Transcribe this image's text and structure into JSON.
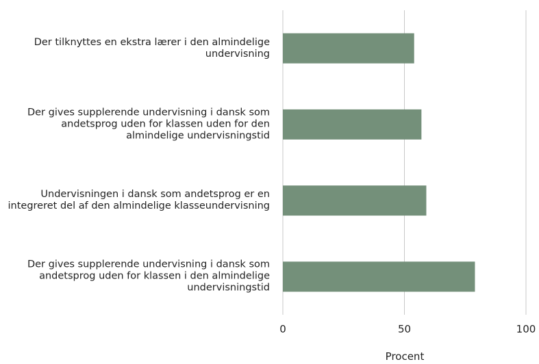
{
  "chart_data": {
    "type": "barh",
    "categories": [
      "Der tilknyttes en ekstra lærer i den almindelige undervisning",
      "Der gives supplerende undervisning i dansk som andetsprog uden for klassen uden for den almindelige undervisningstid",
      "Undervisningen i dansk som andetsprog er en integreret del af den almindelige klasseundervisning",
      "Der gives supplerende undervisning i dansk som andetsprog uden for klassen i den almindelige undervisningstid"
    ],
    "values": [
      54,
      57,
      59,
      79
    ],
    "color": "#74907a",
    "xlim": [
      0,
      100
    ],
    "xticks": [
      0,
      50,
      100
    ],
    "xlabel": "Procent",
    "grid": true
  }
}
